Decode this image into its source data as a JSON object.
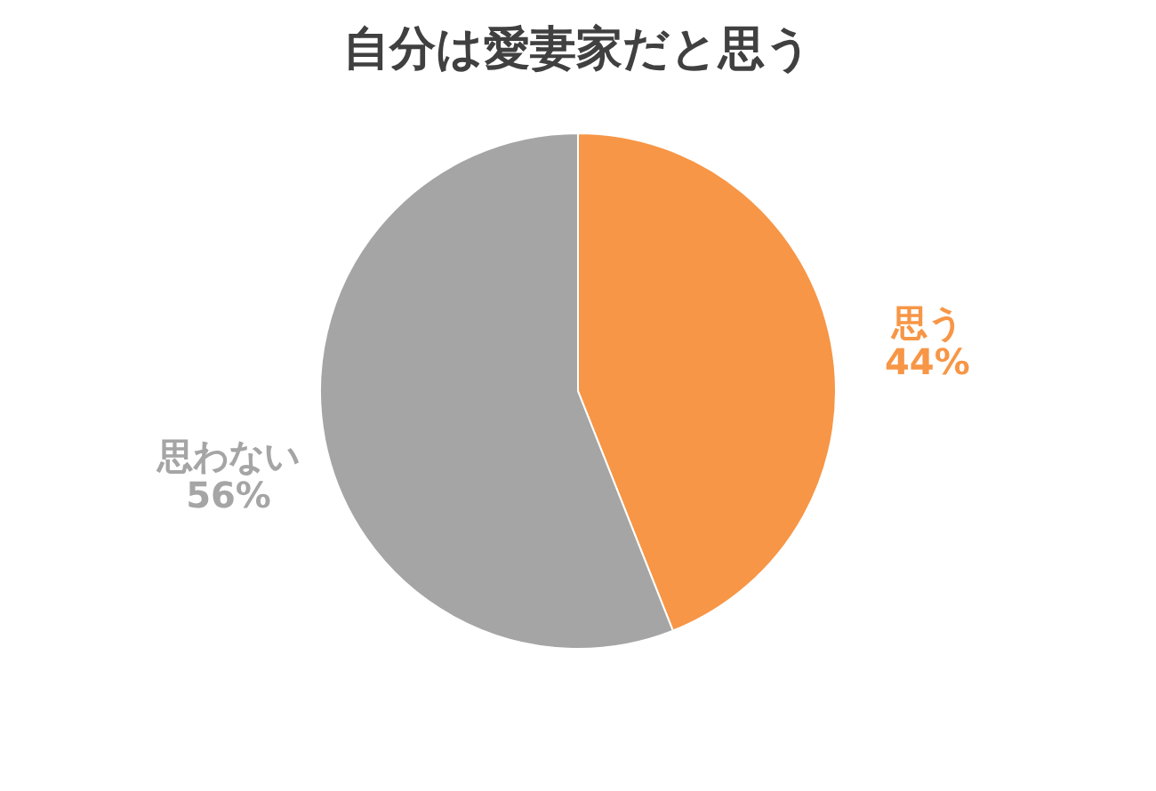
{
  "chart_data": {
    "type": "pie",
    "title": "自分は愛妻家だと思う",
    "categories": [
      "思う",
      "思わない"
    ],
    "values": [
      44,
      56
    ],
    "colors": [
      "#f79646",
      "#a5a5a5"
    ],
    "value_labels": [
      "44%",
      "56%"
    ],
    "legend": false
  }
}
